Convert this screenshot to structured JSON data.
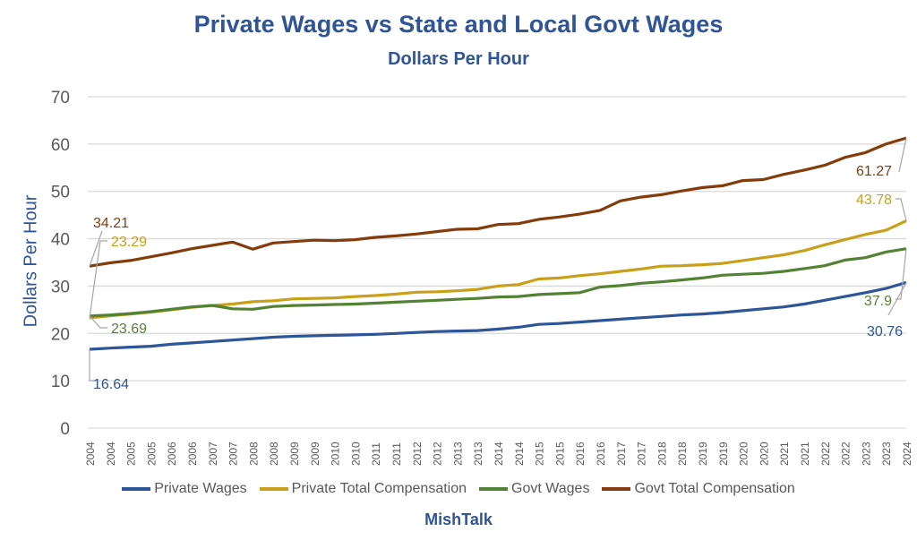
{
  "chart_data": {
    "type": "line",
    "title": "Private Wages vs State and Local Govt Wages",
    "subtitle": "Dollars Per Hour",
    "ylabel": "Dollars Per Hour",
    "xlabel": "",
    "ylim": [
      0,
      70
    ],
    "yticks": [
      0,
      10,
      20,
      30,
      40,
      50,
      60,
      70
    ],
    "grid": true,
    "legend_position": "bottom",
    "categories": [
      "2004",
      "2004",
      "2005",
      "2005",
      "2006",
      "2006",
      "2007",
      "2007",
      "2008",
      "2008",
      "2009",
      "2009",
      "2010",
      "2010",
      "2011",
      "2011",
      "2012",
      "2012",
      "2013",
      "2013",
      "2014",
      "2014",
      "2015",
      "2015",
      "2016",
      "2016",
      "2017",
      "2017",
      "2018",
      "2018",
      "2019",
      "2019",
      "2020",
      "2020",
      "2021",
      "2021",
      "2022",
      "2022",
      "2023",
      "2023",
      "2024"
    ],
    "series": [
      {
        "name": "Private Wages",
        "color": "#2E5597",
        "values": [
          16.64,
          16.9,
          17.1,
          17.3,
          17.7,
          18.0,
          18.3,
          18.6,
          18.9,
          19.2,
          19.4,
          19.5,
          19.6,
          19.7,
          19.8,
          20.0,
          20.2,
          20.4,
          20.5,
          20.6,
          20.9,
          21.3,
          21.9,
          22.1,
          22.4,
          22.7,
          23.0,
          23.3,
          23.6,
          23.9,
          24.1,
          24.4,
          24.8,
          25.2,
          25.6,
          26.2,
          27.0,
          27.8,
          28.6,
          29.5,
          30.76
        ],
        "labels": {
          "first": "16.64",
          "last": "30.76"
        }
      },
      {
        "name": "Private Total Compensation",
        "color": "#C9A01A",
        "values": [
          23.29,
          23.7,
          24.1,
          24.5,
          25.0,
          25.5,
          25.9,
          26.2,
          26.7,
          26.9,
          27.3,
          27.4,
          27.5,
          27.8,
          28.0,
          28.3,
          28.7,
          28.8,
          29.0,
          29.3,
          30.0,
          30.3,
          31.5,
          31.7,
          32.2,
          32.6,
          33.1,
          33.6,
          34.2,
          34.3,
          34.5,
          34.8,
          35.4,
          36.0,
          36.6,
          37.5,
          38.7,
          39.8,
          40.9,
          41.8,
          43.78
        ],
        "labels": {
          "first": "23.29",
          "last": "43.78"
        }
      },
      {
        "name": "Govt Wages",
        "color": "#548235",
        "values": [
          23.69,
          23.9,
          24.2,
          24.6,
          25.1,
          25.6,
          25.9,
          25.2,
          25.1,
          25.7,
          25.9,
          26.0,
          26.1,
          26.2,
          26.4,
          26.6,
          26.8,
          27.0,
          27.2,
          27.4,
          27.7,
          27.8,
          28.2,
          28.4,
          28.6,
          29.8,
          30.1,
          30.6,
          30.9,
          31.3,
          31.7,
          32.3,
          32.5,
          32.7,
          33.1,
          33.7,
          34.3,
          35.5,
          36.0,
          37.2,
          37.9
        ],
        "labels": {
          "first": "23.69",
          "last": "37.9"
        }
      },
      {
        "name": "Govt Total Compensation",
        "color": "#843C0C",
        "values": [
          34.21,
          34.9,
          35.4,
          36.2,
          37.0,
          37.9,
          38.6,
          39.3,
          37.8,
          39.1,
          39.4,
          39.7,
          39.6,
          39.8,
          40.3,
          40.6,
          41.0,
          41.5,
          42.0,
          42.1,
          43.0,
          43.2,
          44.1,
          44.6,
          45.2,
          46.0,
          48.0,
          48.8,
          49.3,
          50.1,
          50.8,
          51.2,
          52.3,
          52.5,
          53.6,
          54.5,
          55.5,
          57.2,
          58.2,
          60.0,
          61.27
        ],
        "labels": {
          "first": "34.21",
          "last": "61.27"
        }
      }
    ],
    "source": "MishTalk"
  }
}
